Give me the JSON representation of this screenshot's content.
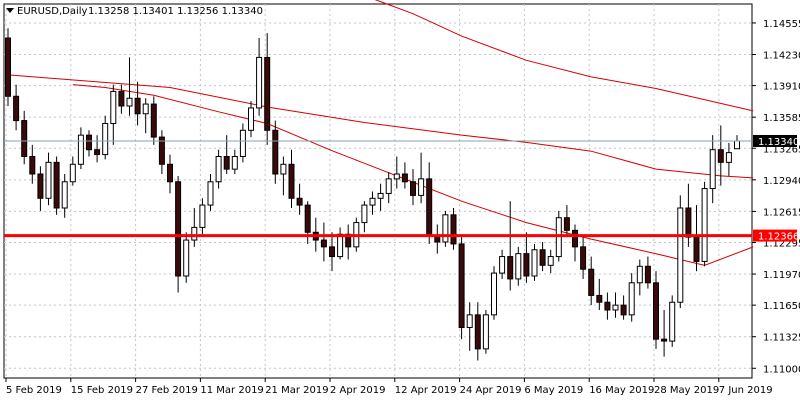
{
  "header": {
    "symbol_label": "EURUSD,Daily",
    "ohlc_values": "1.13258 1.13401 1.13256 1.13340"
  },
  "colors": {
    "bull_fill": "#ffffff",
    "bear_fill": "#3a0a0a",
    "candle_outline": "#000000",
    "ma": "#d60000",
    "level_line": "#ff0000",
    "current_price_line": "#8aa1b1",
    "grid": "#bfc6cc"
  },
  "chart_data": {
    "type": "candlestick",
    "instrument": "EURUSD",
    "timeframe": "Daily",
    "y_range": [
      1.109,
      1.1475
    ],
    "y_ticks": [
      1.14555,
      1.1423,
      1.1391,
      1.13585,
      1.13265,
      1.1294,
      1.12615,
      1.12295,
      1.1197,
      1.1165,
      1.11325,
      1.11
    ],
    "x_ticks": [
      {
        "label": "5 Feb 2019",
        "index": 0
      },
      {
        "label": "15 Feb 2019",
        "index": 8
      },
      {
        "label": "27 Feb 2019",
        "index": 16
      },
      {
        "label": "11 Mar 2019",
        "index": 24
      },
      {
        "label": "21 Mar 2019",
        "index": 32
      },
      {
        "label": "2 Apr 2019",
        "index": 40
      },
      {
        "label": "12 Apr 2019",
        "index": 48
      },
      {
        "label": "24 Apr 2019",
        "index": 56
      },
      {
        "label": "6 May 2019",
        "index": 64
      },
      {
        "label": "16 May 2019",
        "index": 72
      },
      {
        "label": "28 May 2019",
        "index": 80
      },
      {
        "label": "7 Jun 2019",
        "index": 88
      }
    ],
    "current_price": 1.1334,
    "horizontal_level": 1.12366,
    "candles": [
      [
        1.144,
        1.145,
        1.137,
        1.138
      ],
      [
        1.138,
        1.1392,
        1.1345,
        1.1355
      ],
      [
        1.1355,
        1.1365,
        1.131,
        1.1318
      ],
      [
        1.1318,
        1.133,
        1.129,
        1.13
      ],
      [
        1.13,
        1.1308,
        1.1262,
        1.1275
      ],
      [
        1.1275,
        1.1322,
        1.1268,
        1.1312
      ],
      [
        1.1312,
        1.1318,
        1.1258,
        1.1265
      ],
      [
        1.1265,
        1.13,
        1.1255,
        1.1292
      ],
      [
        1.1292,
        1.1318,
        1.1288,
        1.131
      ],
      [
        1.131,
        1.1348,
        1.1305,
        1.134
      ],
      [
        1.134,
        1.1345,
        1.1318,
        1.1325
      ],
      [
        1.1325,
        1.134,
        1.1312,
        1.132
      ],
      [
        1.132,
        1.136,
        1.1315,
        1.1352
      ],
      [
        1.1352,
        1.1392,
        1.133,
        1.1385
      ],
      [
        1.1385,
        1.1392,
        1.1362,
        1.137
      ],
      [
        1.137,
        1.142,
        1.136,
        1.1378
      ],
      [
        1.1378,
        1.1395,
        1.135,
        1.1362
      ],
      [
        1.1362,
        1.1378,
        1.1342,
        1.1372
      ],
      [
        1.1372,
        1.138,
        1.133,
        1.1338
      ],
      [
        1.1338,
        1.1345,
        1.13,
        1.131
      ],
      [
        1.131,
        1.132,
        1.128,
        1.1292
      ],
      [
        1.1292,
        1.1298,
        1.1178,
        1.1195
      ],
      [
        1.1195,
        1.124,
        1.1188,
        1.1232
      ],
      [
        1.1232,
        1.1265,
        1.1225,
        1.1245
      ],
      [
        1.1245,
        1.1275,
        1.1238,
        1.1268
      ],
      [
        1.1268,
        1.13,
        1.1262,
        1.1292
      ],
      [
        1.1292,
        1.1325,
        1.1285,
        1.1318
      ],
      [
        1.1318,
        1.134,
        1.13,
        1.1305
      ],
      [
        1.1305,
        1.1325,
        1.13,
        1.1318
      ],
      [
        1.1318,
        1.1352,
        1.1312,
        1.1345
      ],
      [
        1.1345,
        1.1375,
        1.1338,
        1.1368
      ],
      [
        1.1368,
        1.144,
        1.136,
        1.142
      ],
      [
        1.142,
        1.1445,
        1.133,
        1.1345
      ],
      [
        1.1345,
        1.1355,
        1.129,
        1.13
      ],
      [
        1.13,
        1.1318,
        1.1278,
        1.131
      ],
      [
        1.131,
        1.1325,
        1.1265,
        1.1275
      ],
      [
        1.1275,
        1.129,
        1.1258,
        1.1268
      ],
      [
        1.1268,
        1.1272,
        1.1228,
        1.124
      ],
      [
        1.124,
        1.1255,
        1.122,
        1.1232
      ],
      [
        1.1232,
        1.125,
        1.121,
        1.1225
      ],
      [
        1.1225,
        1.124,
        1.12,
        1.1215
      ],
      [
        1.1215,
        1.1245,
        1.1212,
        1.1238
      ],
      [
        1.1238,
        1.1248,
        1.1212,
        1.1225
      ],
      [
        1.1225,
        1.1255,
        1.122,
        1.125
      ],
      [
        1.125,
        1.1272,
        1.124,
        1.1268
      ],
      [
        1.1268,
        1.1282,
        1.1258,
        1.1275
      ],
      [
        1.1275,
        1.129,
        1.1262,
        1.128
      ],
      [
        1.128,
        1.1302,
        1.127,
        1.1295
      ],
      [
        1.1295,
        1.1318,
        1.1285,
        1.13
      ],
      [
        1.13,
        1.1312,
        1.1285,
        1.1292
      ],
      [
        1.1292,
        1.1305,
        1.1268,
        1.1278
      ],
      [
        1.1278,
        1.1322,
        1.127,
        1.1295
      ],
      [
        1.1295,
        1.1312,
        1.1228,
        1.1236
      ],
      [
        1.1236,
        1.1248,
        1.1218,
        1.123
      ],
      [
        1.123,
        1.1262,
        1.1225,
        1.1258
      ],
      [
        1.1258,
        1.1265,
        1.1222,
        1.1228
      ],
      [
        1.1228,
        1.1235,
        1.113,
        1.1142
      ],
      [
        1.1142,
        1.1168,
        1.1118,
        1.1155
      ],
      [
        1.1155,
        1.1168,
        1.1108,
        1.112
      ],
      [
        1.112,
        1.116,
        1.1115,
        1.1155
      ],
      [
        1.1155,
        1.1205,
        1.115,
        1.1198
      ],
      [
        1.1198,
        1.1222,
        1.1192,
        1.1215
      ],
      [
        1.1215,
        1.1272,
        1.118,
        1.1192
      ],
      [
        1.1192,
        1.1225,
        1.1185,
        1.1218
      ],
      [
        1.1218,
        1.124,
        1.1188,
        1.1195
      ],
      [
        1.1195,
        1.1228,
        1.119,
        1.1222
      ],
      [
        1.1222,
        1.123,
        1.12,
        1.1206
      ],
      [
        1.1206,
        1.1222,
        1.1198,
        1.1215
      ],
      [
        1.1215,
        1.1262,
        1.121,
        1.1255
      ],
      [
        1.1255,
        1.1268,
        1.1235,
        1.1242
      ],
      [
        1.1242,
        1.1248,
        1.121,
        1.1225
      ],
      [
        1.1225,
        1.1235,
        1.1192,
        1.1202
      ],
      [
        1.1202,
        1.1215,
        1.1165,
        1.1175
      ],
      [
        1.1175,
        1.1192,
        1.116,
        1.1168
      ],
      [
        1.1168,
        1.1178,
        1.115,
        1.116
      ],
      [
        1.116,
        1.1178,
        1.1152,
        1.1165
      ],
      [
        1.1165,
        1.1175,
        1.115,
        1.1155
      ],
      [
        1.1155,
        1.1198,
        1.1148,
        1.1188
      ],
      [
        1.1188,
        1.1212,
        1.1175,
        1.1205
      ],
      [
        1.1205,
        1.1215,
        1.1182,
        1.1188
      ],
      [
        1.1188,
        1.12,
        1.112,
        1.113
      ],
      [
        1.113,
        1.116,
        1.1112,
        1.1128
      ],
      [
        1.1128,
        1.1175,
        1.1122,
        1.1168
      ],
      [
        1.1168,
        1.1278,
        1.1162,
        1.1265
      ],
      [
        1.1265,
        1.129,
        1.1225,
        1.1235
      ],
      [
        1.1235,
        1.1268,
        1.12,
        1.121
      ],
      [
        1.121,
        1.1292,
        1.1205,
        1.1285
      ],
      [
        1.1285,
        1.134,
        1.127,
        1.1325
      ],
      [
        1.1325,
        1.135,
        1.1288,
        1.1312
      ],
      [
        1.1312,
        1.1332,
        1.1298,
        1.1322
      ],
      [
        1.1326,
        1.134,
        1.1326,
        1.1334
      ]
    ],
    "moving_averages": [
      {
        "color": "#d60000",
        "values": [
          [
            0,
            1.1402
          ],
          [
            20,
            1.1389
          ],
          [
            32,
            1.1369
          ],
          [
            44,
            1.1353
          ],
          [
            56,
            1.134
          ],
          [
            64,
            1.13325
          ],
          [
            72,
            1.13235
          ],
          [
            80,
            1.1305
          ],
          [
            88,
            1.1298
          ],
          [
            92,
            1.1296
          ]
        ]
      },
      {
        "color": "#d60000",
        "values": [
          [
            40,
            1.1496
          ],
          [
            50,
            1.1465
          ],
          [
            56,
            1.1442
          ],
          [
            64,
            1.1417
          ],
          [
            72,
            1.14
          ],
          [
            80,
            1.1388
          ],
          [
            92,
            1.1365
          ]
        ]
      },
      {
        "color": "#d60000",
        "values": [
          [
            8,
            1.1392
          ],
          [
            12,
            1.1389
          ],
          [
            18,
            1.1381
          ],
          [
            26,
            1.1364
          ],
          [
            32,
            1.1352
          ],
          [
            40,
            1.1324
          ],
          [
            48,
            1.1298
          ],
          [
            56,
            1.1272
          ],
          [
            64,
            1.125
          ],
          [
            72,
            1.1233
          ],
          [
            80,
            1.1218
          ],
          [
            86,
            1.1206
          ],
          [
            92,
            1.1225
          ]
        ]
      }
    ]
  }
}
